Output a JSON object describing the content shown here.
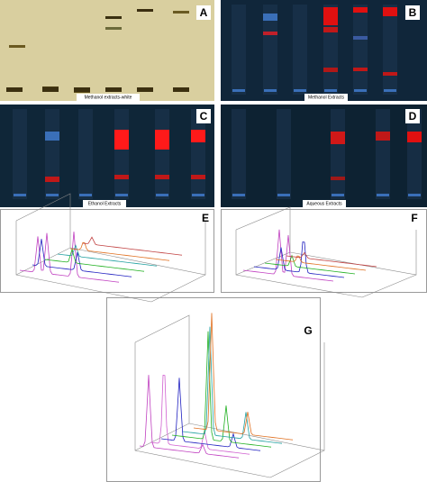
{
  "panels": [
    {
      "letter": "A",
      "caption": "Methanol extracts-white"
    },
    {
      "letter": "B",
      "caption": "Methanol Extracts"
    },
    {
      "letter": "C",
      "caption": "Ethanol Extracts"
    },
    {
      "letter": "D",
      "caption": "Aqueous Extracts"
    },
    {
      "letter": "E"
    },
    {
      "letter": "F"
    },
    {
      "letter": "G"
    }
  ]
}
